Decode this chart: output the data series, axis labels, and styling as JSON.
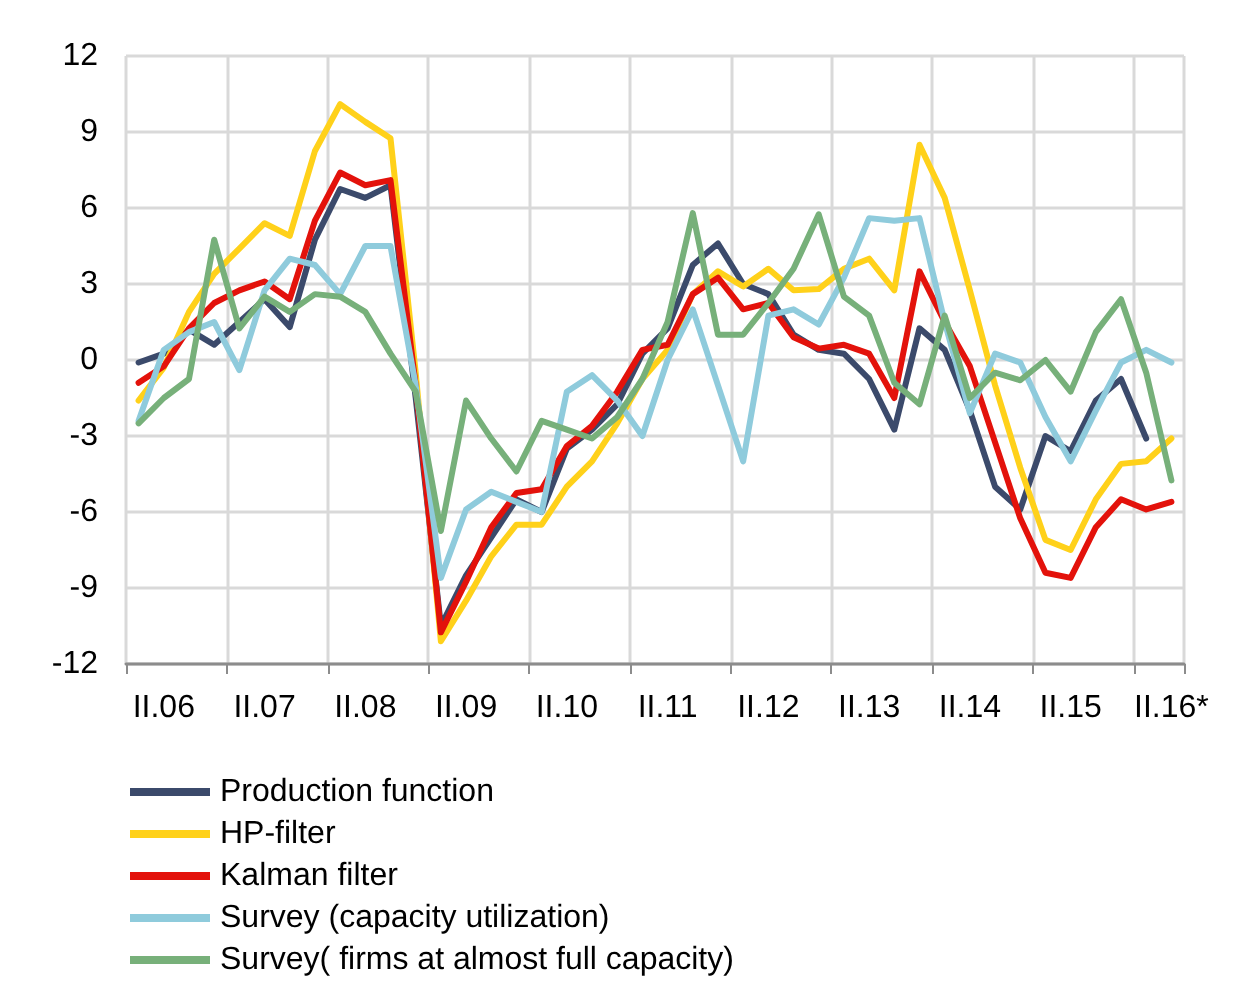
{
  "chart_data": {
    "type": "line",
    "categories": [
      null,
      "II.06",
      null,
      null,
      null,
      "II.07",
      null,
      null,
      null,
      "II.08",
      null,
      null,
      null,
      "II.09",
      null,
      null,
      null,
      "II.10",
      null,
      null,
      null,
      "II.11",
      null,
      null,
      null,
      "II.12",
      null,
      null,
      null,
      "II.13",
      null,
      null,
      null,
      "II.14",
      null,
      null,
      null,
      "II.15",
      null,
      null,
      null,
      "II.16*"
    ],
    "series": [
      {
        "name": "Production function",
        "color": "#3b4a6b",
        "values": [
          -0.1,
          0.25,
          1.2,
          0.6,
          1.5,
          2.4,
          1.3,
          4.75,
          6.75,
          6.4,
          6.9,
          -1.5,
          -10.5,
          -8.5,
          -7,
          -5.5,
          -6,
          -3.5,
          -2.75,
          -1.75,
          0.25,
          1.25,
          3.75,
          4.6,
          3,
          2.6,
          1,
          0.4,
          0.25,
          -0.75,
          -2.75,
          1.25,
          0.4,
          -2,
          -5,
          -5.9,
          -3,
          -3.6,
          -1.6,
          -0.75,
          -3.1,
          null
        ]
      },
      {
        "name": "HP-filter",
        "color": "#ffd11a",
        "values": [
          -1.6,
          -0.3,
          1.9,
          3.4,
          4.4,
          5.4,
          4.9,
          8.25,
          10.1,
          9.4,
          8.75,
          -0.5,
          -11.1,
          -9.5,
          -7.75,
          -6.5,
          -6.5,
          -5,
          -4,
          -2.5,
          -0.75,
          0.4,
          2.6,
          3.5,
          2.9,
          3.6,
          2.75,
          2.8,
          3.6,
          4,
          2.75,
          8.5,
          6.4,
          2.75,
          -1,
          -4.25,
          -7.1,
          -7.5,
          -5.5,
          -4.1,
          -4,
          -3.1
        ]
      },
      {
        "name": "Kalman filter",
        "color": "#e3120b",
        "values": [
          -0.9,
          -0.25,
          1.25,
          2.25,
          2.75,
          3.1,
          2.4,
          5.5,
          7.4,
          6.9,
          7.1,
          -1,
          -10.75,
          -8.75,
          -6.6,
          -5.25,
          -5.1,
          -3.4,
          -2.6,
          -1.25,
          0.4,
          0.6,
          2.6,
          3.25,
          2,
          2.25,
          0.9,
          0.45,
          0.6,
          0.25,
          -1.5,
          3.5,
          1.5,
          -0.25,
          -3.25,
          -6.25,
          -8.4,
          -8.6,
          -6.6,
          -5.5,
          -5.9,
          -5.6
        ]
      },
      {
        "name": "Survey (capacity utilization)",
        "color": "#8fcbdc",
        "values": [
          -2.4,
          0.4,
          1.1,
          1.5,
          -0.4,
          2.75,
          4,
          3.75,
          2.6,
          4.5,
          4.5,
          -1,
          -8.6,
          -5.9,
          -5.2,
          -5.6,
          -6,
          -1.25,
          -0.6,
          -1.6,
          -3,
          0,
          2,
          -1,
          -4,
          1.75,
          2,
          1.4,
          3.25,
          5.6,
          5.5,
          5.6,
          1.5,
          -2.1,
          0.25,
          -0.1,
          -2.25,
          -4,
          -2,
          -0.1,
          0.4,
          -0.1
        ]
      },
      {
        "name": "Survey( firms at almost full capacity)",
        "color": "#77b07a",
        "values": [
          -2.5,
          -1.5,
          -0.75,
          4.75,
          1.25,
          2.5,
          1.9,
          2.6,
          2.5,
          1.9,
          0.25,
          -1.25,
          -6.75,
          -1.6,
          -3.1,
          -4.4,
          -2.4,
          -2.75,
          -3.1,
          -2.25,
          -0.75,
          1.5,
          5.8,
          1,
          1,
          2.25,
          3.6,
          5.75,
          2.5,
          1.75,
          -0.9,
          -1.75,
          1.75,
          -1.5,
          -0.5,
          -0.8,
          0,
          -1.25,
          1.1,
          2.4,
          -0.5,
          -4.75
        ]
      }
    ],
    "ylim": [
      -12,
      12
    ],
    "yticks": [
      -12,
      -9,
      -6,
      -3,
      0,
      3,
      6,
      9,
      12
    ],
    "grid": true,
    "legend": "bottom",
    "marker": "none",
    "line_style": "solid"
  }
}
